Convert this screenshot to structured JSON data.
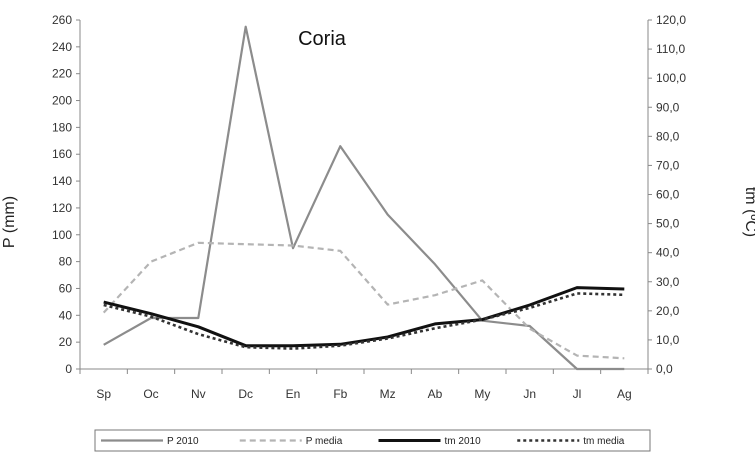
{
  "chart_data": {
    "type": "line",
    "title": "Coria",
    "ylabel_left": "P (mm)",
    "ylabel_right": "tm (ºC)",
    "categories": [
      "Sp",
      "Oc",
      "Nv",
      "Dc",
      "En",
      "Fb",
      "Mz",
      "Ab",
      "My",
      "Jn",
      "Jl",
      "Ag"
    ],
    "left_axis": {
      "ylim": [
        0,
        260
      ],
      "ticks": [
        "0",
        "20",
        "40",
        "60",
        "80",
        "100",
        "120",
        "140",
        "160",
        "180",
        "200",
        "220",
        "240",
        "260"
      ]
    },
    "right_axis": {
      "ylim": [
        0,
        120
      ],
      "ticks": [
        "0,0",
        "10,0",
        "20,0",
        "30,0",
        "40,0",
        "50,0",
        "60,0",
        "70,0",
        "80,0",
        "90,0",
        "100,0",
        "110,0",
        "120,0"
      ]
    },
    "grid": false,
    "legend_position": "bottom",
    "series": [
      {
        "name": "P 2010",
        "axis": "left",
        "style": "solid",
        "color": "#8c8c8c",
        "values": [
          18,
          38,
          38,
          255,
          90,
          166,
          115,
          78,
          36,
          32,
          0,
          0
        ]
      },
      {
        "name": "P media",
        "axis": "left",
        "style": "dashed",
        "color": "#b4b4b4",
        "values": [
          42,
          80,
          94,
          93,
          92,
          88,
          48,
          55,
          66,
          30,
          10,
          8
        ]
      },
      {
        "name": "tm 2010",
        "axis": "right",
        "style": "solid-thick",
        "color": "#111111",
        "values": [
          23,
          19,
          14.5,
          8,
          8,
          8.5,
          11,
          15.5,
          17,
          22,
          28,
          27.5
        ]
      },
      {
        "name": "tm media",
        "axis": "right",
        "style": "dotted",
        "color": "#333333",
        "values": [
          22,
          18,
          12,
          7.5,
          7,
          8,
          10.5,
          14,
          17,
          21,
          26,
          25.5
        ]
      }
    ]
  }
}
